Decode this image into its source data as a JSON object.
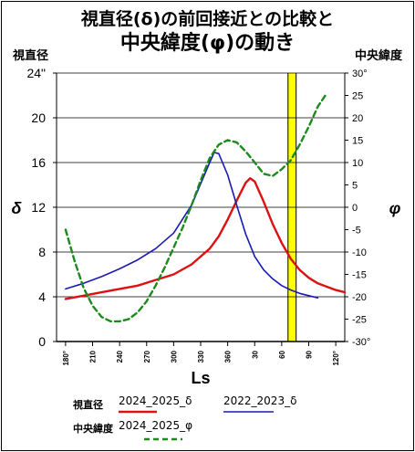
{
  "title_line1": "視直径(δ)の前回接近との比較と",
  "title_line2": "中央緯度(φ)の動き",
  "left_axis_title": "視直径",
  "right_axis_title": "中央緯度",
  "colors": {
    "series_2024_2025_delta": "#dd1111",
    "series_2022_2023_delta": "#1a1ab4",
    "series_2024_2025_phi": "#1c8a1c",
    "opposition_band": "#ffff00",
    "grid": "#000000"
  },
  "chart_data": {
    "type": "line",
    "xlabel": "Ls",
    "x_ticks": [
      "180°",
      "210",
      "240",
      "270",
      "300",
      "330",
      "360",
      "30",
      "60",
      "90",
      "120°"
    ],
    "x_tick_values": [
      180,
      210,
      240,
      270,
      300,
      330,
      360,
      390,
      420,
      450,
      480
    ],
    "xlim": [
      170,
      490
    ],
    "left_axis": {
      "label": "δ",
      "ylim": [
        0,
        24
      ],
      "ticks": [
        "0",
        "4",
        "8",
        "12",
        "16",
        "20",
        "24\""
      ],
      "tick_values": [
        0,
        4,
        8,
        12,
        16,
        20,
        24
      ]
    },
    "right_axis": {
      "label": "φ",
      "ylim": [
        -30,
        30
      ],
      "ticks": [
        "-30°",
        "-25",
        "-20",
        "-15",
        "-10",
        "-5",
        "0",
        "5",
        "10",
        "15",
        "20",
        "25",
        "30°"
      ],
      "tick_values": [
        -30,
        -25,
        -20,
        -15,
        -10,
        -5,
        0,
        5,
        10,
        15,
        20,
        25,
        30
      ]
    },
    "grid": true,
    "highlight_band": {
      "x_from": 427,
      "x_to": 436
    },
    "marker_lines": [
      427,
      436
    ],
    "series": [
      {
        "name": "2024_2025_δ",
        "axis": "left",
        "style": "solid",
        "x": [
          180,
          200,
          220,
          240,
          260,
          280,
          300,
          320,
          340,
          350,
          360,
          370,
          380,
          385,
          390,
          400,
          410,
          420,
          430,
          440,
          450,
          460,
          470,
          480,
          490
        ],
        "y": [
          3.8,
          4.1,
          4.4,
          4.7,
          5.0,
          5.5,
          6.0,
          6.9,
          8.3,
          9.4,
          10.9,
          12.6,
          14.2,
          14.6,
          14.3,
          12.5,
          10.5,
          8.8,
          7.4,
          6.4,
          5.7,
          5.2,
          4.9,
          4.6,
          4.4
        ]
      },
      {
        "name": "2022_2023_δ",
        "axis": "left",
        "style": "solid",
        "x": [
          180,
          200,
          220,
          240,
          260,
          280,
          300,
          320,
          330,
          340,
          345,
          350,
          360,
          370,
          380,
          390,
          400,
          410,
          420,
          430,
          440,
          450,
          460
        ],
        "y": [
          4.7,
          5.2,
          5.8,
          6.5,
          7.3,
          8.3,
          9.7,
          12.2,
          14.1,
          16.0,
          16.9,
          16.8,
          14.9,
          12.2,
          9.6,
          7.6,
          6.4,
          5.6,
          5.0,
          4.6,
          4.3,
          4.1,
          3.9
        ]
      },
      {
        "name": "2024_2025_φ",
        "axis": "right",
        "style": "dashed",
        "x": [
          180,
          190,
          200,
          210,
          220,
          230,
          240,
          250,
          260,
          270,
          280,
          290,
          300,
          310,
          320,
          330,
          340,
          350,
          360,
          370,
          380,
          390,
          400,
          410,
          420,
          430,
          440,
          450,
          460,
          470
        ],
        "y": [
          -5,
          -12,
          -18,
          -22,
          -24.5,
          -25.5,
          -25.5,
          -25,
          -23.5,
          -21,
          -17.5,
          -13.5,
          -9,
          -4.5,
          0.5,
          6,
          11,
          14,
          15,
          14.5,
          12.5,
          10,
          7.5,
          7,
          8.5,
          10.5,
          14,
          18,
          22.5,
          25.5
        ]
      }
    ]
  },
  "legend": {
    "row1_label": "視直径",
    "row1_items": [
      "2024_2025_δ",
      "2022_2023_δ"
    ],
    "row2_label": "中央緯度",
    "row2_items": [
      "2024_2025_φ"
    ]
  }
}
